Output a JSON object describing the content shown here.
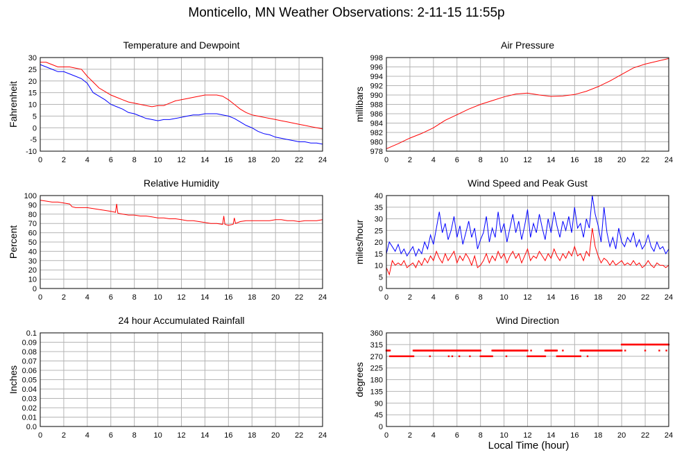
{
  "page": {
    "title": "Monticello, MN Weather Observations: 2-11-15 11:55p",
    "x_axis_label": "Local Time (hour)"
  },
  "colors": {
    "red": "#ff0000",
    "blue": "#0000ff",
    "grid": "#b4b4b4",
    "frame": "#000000"
  },
  "chart_data": [
    {
      "id": "temperature",
      "type": "line",
      "title": "Temperature and Dewpoint",
      "ylabel": "Fahrenheit",
      "xlabel": "",
      "xlim": [
        0,
        24
      ],
      "ylim": [
        -10,
        30
      ],
      "xticks": [
        0,
        2,
        4,
        6,
        8,
        10,
        12,
        14,
        16,
        18,
        20,
        22,
        24
      ],
      "yticks": [
        -10,
        -5,
        0,
        5,
        10,
        15,
        20,
        25,
        30
      ],
      "grid": true,
      "series": [
        {
          "color": "#ff0000",
          "x": [
            0,
            0.5,
            1,
            1.5,
            2,
            2.5,
            3,
            3.5,
            4,
            4.5,
            5,
            5.5,
            6,
            6.5,
            7,
            7.5,
            8,
            8.5,
            9,
            9.5,
            10,
            10.5,
            11,
            11.5,
            12,
            12.5,
            13,
            13.5,
            14,
            14.5,
            15,
            15.5,
            16,
            16.5,
            17,
            17.5,
            18,
            18.5,
            19,
            19.5,
            20,
            20.5,
            21,
            21.5,
            22,
            22.5,
            23,
            23.5,
            24
          ],
          "y": [
            28,
            28,
            27,
            26,
            26,
            26,
            25.5,
            25,
            22,
            19.5,
            17,
            15.5,
            14,
            13,
            12,
            11,
            10.5,
            10,
            9.5,
            9,
            9.5,
            9.5,
            10.5,
            11.5,
            12,
            12.5,
            13,
            13.5,
            14,
            14,
            14,
            13.5,
            12,
            10,
            8,
            6.5,
            5.5,
            5,
            4.5,
            4,
            3.5,
            3,
            2.5,
            2,
            1.5,
            1,
            0.5,
            0,
            -0.5
          ]
        },
        {
          "color": "#0000ff",
          "x": [
            0,
            0.5,
            1,
            1.5,
            2,
            2.5,
            3,
            3.5,
            4,
            4.5,
            5,
            5.5,
            6,
            6.5,
            7,
            7.5,
            8,
            8.5,
            9,
            9.5,
            10,
            10.5,
            11,
            11.5,
            12,
            12.5,
            13,
            13.5,
            14,
            14.5,
            15,
            15.5,
            16,
            16.5,
            17,
            17.5,
            18,
            18.5,
            19,
            19.5,
            20,
            20.5,
            21,
            21.5,
            22,
            22.5,
            23,
            23.5,
            24
          ],
          "y": [
            27,
            26,
            25,
            24,
            24,
            23,
            22,
            21,
            19,
            15,
            13.5,
            12,
            10,
            9,
            8,
            6.5,
            6,
            5,
            4,
            3.5,
            3,
            3.5,
            3.5,
            4,
            4.5,
            5,
            5.5,
            5.5,
            6,
            6,
            6,
            5.5,
            5,
            4,
            2.5,
            1,
            0,
            -1.5,
            -2.5,
            -3,
            -4,
            -4.5,
            -5,
            -5.5,
            -6,
            -6,
            -6.5,
            -6.5,
            -7
          ]
        }
      ]
    },
    {
      "id": "pressure",
      "type": "line",
      "title": "Air Pressure",
      "ylabel": "millibars",
      "xlabel": "",
      "xlim": [
        0,
        24
      ],
      "ylim": [
        978,
        998
      ],
      "xticks": [
        0,
        2,
        4,
        6,
        8,
        10,
        12,
        14,
        16,
        18,
        20,
        22,
        24
      ],
      "yticks": [
        978,
        980,
        982,
        984,
        986,
        988,
        990,
        992,
        994,
        996,
        998
      ],
      "grid": true,
      "series": [
        {
          "color": "#ff0000",
          "x": [
            0,
            1,
            2,
            3,
            4,
            5,
            6,
            7,
            8,
            9,
            10,
            11,
            12,
            13,
            14,
            15,
            16,
            17,
            18,
            19,
            20,
            21,
            22,
            23,
            24
          ],
          "y": [
            978.5,
            979.6,
            980.8,
            981.8,
            983,
            984.6,
            985.8,
            987,
            988,
            988.8,
            989.6,
            990.2,
            990.4,
            990,
            989.7,
            989.8,
            990.1,
            990.8,
            991.8,
            993,
            994.4,
            995.8,
            996.6,
            997.2,
            997.8
          ]
        }
      ]
    },
    {
      "id": "humidity",
      "type": "line",
      "title": "Relative Humidity",
      "ylabel": "Percent",
      "xlabel": "",
      "xlim": [
        0,
        24
      ],
      "ylim": [
        0,
        100
      ],
      "xticks": [
        0,
        2,
        4,
        6,
        8,
        10,
        12,
        14,
        16,
        18,
        20,
        22,
        24
      ],
      "yticks": [
        0,
        10,
        20,
        30,
        40,
        50,
        60,
        70,
        80,
        90,
        100
      ],
      "grid": true,
      "series": [
        {
          "color": "#ff0000",
          "x": [
            0,
            0.5,
            1,
            1.5,
            2,
            2.5,
            2.7,
            3,
            3.5,
            4,
            4.5,
            5,
            5.5,
            6,
            6.4,
            6.5,
            6.6,
            7,
            7.5,
            8,
            8.5,
            9,
            9.5,
            10,
            10.5,
            11,
            11.5,
            12,
            12.5,
            13,
            13.5,
            14,
            14.5,
            15,
            15.5,
            15.6,
            15.7,
            16,
            16.4,
            16.5,
            16.6,
            17,
            17.5,
            18,
            18.5,
            19,
            19.5,
            20,
            20.5,
            21,
            21.5,
            22,
            22.5,
            23,
            23.5,
            24
          ],
          "y": [
            95,
            94,
            93,
            93,
            92,
            91,
            88,
            87,
            87,
            87,
            86,
            85,
            84,
            83,
            82,
            91,
            81,
            80,
            79,
            79,
            78,
            78,
            77,
            76,
            76,
            75,
            75,
            74,
            73,
            73,
            72,
            71,
            70,
            70,
            69,
            78,
            69,
            68,
            69,
            76,
            70,
            72,
            73,
            73,
            73,
            73,
            73,
            74,
            74,
            73,
            73,
            72,
            73,
            73,
            73,
            74
          ]
        }
      ]
    },
    {
      "id": "wind",
      "type": "line",
      "title": "Wind Speed and Peak Gust",
      "ylabel": "miles/hour",
      "xlabel": "",
      "xlim": [
        0,
        24
      ],
      "ylim": [
        0,
        40
      ],
      "xticks": [
        0,
        2,
        4,
        6,
        8,
        10,
        12,
        14,
        16,
        18,
        20,
        22,
        24
      ],
      "yticks": [
        0,
        5,
        10,
        15,
        20,
        25,
        30,
        35,
        40
      ],
      "grid": true,
      "series": [
        {
          "color": "#0000ff",
          "x": [
            0,
            0.25,
            0.5,
            0.75,
            1,
            1.25,
            1.5,
            1.75,
            2,
            2.25,
            2.5,
            2.75,
            3,
            3.25,
            3.5,
            3.75,
            4,
            4.25,
            4.5,
            4.75,
            5,
            5.25,
            5.5,
            5.75,
            6,
            6.25,
            6.5,
            6.75,
            7,
            7.25,
            7.5,
            7.75,
            8,
            8.25,
            8.5,
            8.75,
            9,
            9.25,
            9.5,
            9.75,
            10,
            10.25,
            10.5,
            10.75,
            11,
            11.25,
            11.5,
            11.75,
            12,
            12.25,
            12.5,
            12.75,
            13,
            13.25,
            13.5,
            13.75,
            14,
            14.25,
            14.5,
            14.75,
            15,
            15.25,
            15.5,
            15.75,
            16,
            16.25,
            16.5,
            16.75,
            17,
            17.25,
            17.5,
            17.75,
            18,
            18.25,
            18.5,
            18.75,
            19,
            19.25,
            19.5,
            19.75,
            20,
            20.25,
            20.5,
            20.75,
            21,
            21.25,
            21.5,
            21.75,
            22,
            22.25,
            22.5,
            22.75,
            23,
            23.25,
            23.5,
            23.75,
            24
          ],
          "y": [
            15,
            20,
            18,
            16,
            19,
            15,
            17,
            14,
            16,
            18,
            14,
            17,
            15,
            20,
            17,
            23,
            19,
            26,
            33,
            24,
            28,
            21,
            25,
            31,
            22,
            27,
            19,
            24,
            29,
            22,
            26,
            17,
            21,
            24,
            31,
            20,
            26,
            22,
            33,
            24,
            28,
            20,
            26,
            32,
            24,
            29,
            21,
            27,
            34,
            22,
            28,
            24,
            32,
            26,
            21,
            30,
            24,
            33,
            27,
            22,
            29,
            25,
            31,
            24,
            35,
            26,
            28,
            22,
            30,
            26,
            40,
            32,
            27,
            20,
            35,
            24,
            18,
            22,
            17,
            26,
            20,
            18,
            22,
            20,
            24,
            18,
            21,
            17,
            19,
            23,
            18,
            16,
            20,
            17,
            18,
            15,
            17
          ]
        },
        {
          "color": "#ff0000",
          "x": [
            0,
            0.25,
            0.5,
            0.75,
            1,
            1.25,
            1.5,
            1.75,
            2,
            2.25,
            2.5,
            2.75,
            3,
            3.25,
            3.5,
            3.75,
            4,
            4.25,
            4.5,
            4.75,
            5,
            5.25,
            5.5,
            5.75,
            6,
            6.25,
            6.5,
            6.75,
            7,
            7.25,
            7.5,
            7.75,
            8,
            8.25,
            8.5,
            8.75,
            9,
            9.25,
            9.5,
            9.75,
            10,
            10.25,
            10.5,
            10.75,
            11,
            11.25,
            11.5,
            11.75,
            12,
            12.25,
            12.5,
            12.75,
            13,
            13.25,
            13.5,
            13.75,
            14,
            14.25,
            14.5,
            14.75,
            15,
            15.25,
            15.5,
            15.75,
            16,
            16.25,
            16.5,
            16.75,
            17,
            17.25,
            17.5,
            17.75,
            18,
            18.25,
            18.5,
            18.75,
            19,
            19.25,
            19.5,
            19.75,
            20,
            20.25,
            20.5,
            20.75,
            21,
            21.25,
            21.5,
            21.75,
            22,
            22.25,
            22.5,
            22.75,
            23,
            23.25,
            23.5,
            23.75,
            24
          ],
          "y": [
            9,
            6,
            12,
            10,
            11,
            10,
            12,
            9,
            10,
            11,
            9,
            12,
            10,
            13,
            11,
            14,
            12,
            16,
            13,
            11,
            15,
            12,
            14,
            16,
            11,
            14,
            12,
            15,
            13,
            10,
            14,
            9,
            10,
            12,
            15,
            11,
            14,
            12,
            16,
            13,
            15,
            11,
            14,
            16,
            13,
            15,
            11,
            14,
            17,
            12,
            14,
            13,
            16,
            14,
            12,
            15,
            13,
            17,
            14,
            12,
            15,
            13,
            16,
            14,
            18,
            14,
            15,
            12,
            16,
            14,
            26,
            18,
            14,
            11,
            13,
            12,
            10,
            12,
            10,
            11,
            12,
            10,
            11,
            10,
            12,
            10,
            11,
            9,
            10,
            12,
            10,
            9,
            11,
            10,
            10,
            9,
            10
          ]
        }
      ]
    },
    {
      "id": "rainfall",
      "type": "line",
      "title": "24 hour Accumulated Rainfall",
      "ylabel": "Inches",
      "xlabel": "",
      "xlim": [
        0,
        24
      ],
      "ylim": [
        0,
        0.1
      ],
      "xticks": [
        0,
        2,
        4,
        6,
        8,
        10,
        12,
        14,
        16,
        18,
        20,
        22,
        24
      ],
      "yticks": [
        "0.0",
        "0.01",
        "0.02",
        "0.03",
        "0.04",
        "0.05",
        "0.06",
        "0.07",
        "0.08",
        "0.09",
        "0.1"
      ],
      "grid": true,
      "series": [
        {
          "color": "#ff0000",
          "x": [
            0,
            24
          ],
          "y": [
            0,
            0
          ]
        }
      ]
    },
    {
      "id": "direction",
      "type": "scatter",
      "title": "Wind Direction",
      "ylabel": "degrees",
      "xlabel": "Local Time (hour)",
      "xlim": [
        0,
        24
      ],
      "ylim": [
        0,
        360
      ],
      "xticks": [
        0,
        2,
        4,
        6,
        8,
        10,
        12,
        14,
        16,
        18,
        20,
        22,
        24
      ],
      "yticks": [
        0,
        45,
        90,
        135,
        180,
        225,
        270,
        315,
        360
      ],
      "grid": true,
      "series": [
        {
          "color": "#ff0000",
          "segments": [
            {
              "from": 0.0,
              "to": 0.3,
              "y": 292
            },
            {
              "from": 0.3,
              "to": 2.3,
              "y": 270
            },
            {
              "from": 2.3,
              "to": 8.0,
              "y": 292
            },
            {
              "from": 8.0,
              "to": 9.0,
              "y": 270
            },
            {
              "from": 9.0,
              "to": 12.0,
              "y": 292
            },
            {
              "from": 12.0,
              "to": 13.5,
              "y": 270
            },
            {
              "from": 13.5,
              "to": 14.5,
              "y": 292
            },
            {
              "from": 14.5,
              "to": 16.5,
              "y": 270
            },
            {
              "from": 16.5,
              "to": 20.0,
              "y": 292
            },
            {
              "from": 20.0,
              "to": 24.0,
              "y": 315
            }
          ],
          "extra_points": [
            {
              "x": 3.7,
              "y": 270
            },
            {
              "x": 5.3,
              "y": 270
            },
            {
              "x": 5.6,
              "y": 270
            },
            {
              "x": 6.2,
              "y": 270
            },
            {
              "x": 7.1,
              "y": 270
            },
            {
              "x": 10.2,
              "y": 270
            },
            {
              "x": 12.3,
              "y": 292
            },
            {
              "x": 15.0,
              "y": 292
            },
            {
              "x": 17.1,
              "y": 270
            },
            {
              "x": 20.3,
              "y": 292
            },
            {
              "x": 22.0,
              "y": 292
            },
            {
              "x": 23.2,
              "y": 292
            },
            {
              "x": 23.8,
              "y": 292
            }
          ]
        }
      ]
    }
  ]
}
